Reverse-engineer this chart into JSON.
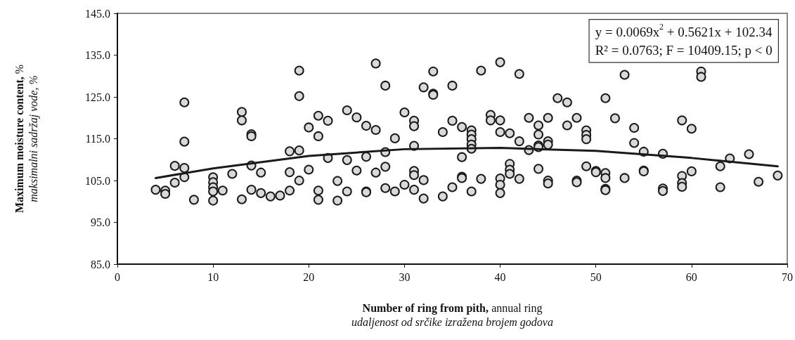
{
  "chart_data": {
    "type": "scatter",
    "xlabel": "Number of ring from pith, annual ring\nudaljenost od srčike izražena brojem godova",
    "ylabel": "Maximum moisture content, %\nmaksimalni sadržaj vode, %",
    "xlim": [
      0,
      70
    ],
    "xticks": [
      0,
      10,
      20,
      30,
      40,
      50,
      60,
      70
    ],
    "ylim": [
      85,
      145
    ],
    "yticks": [
      {
        "value": 85,
        "label": "85.0"
      },
      {
        "value": 95,
        "label": "95.0"
      },
      {
        "value": 105,
        "label": "105.0"
      },
      {
        "value": 115,
        "label": "115.0"
      },
      {
        "value": 125,
        "label": "125.0"
      },
      {
        "value": 135,
        "label": "135.0"
      },
      {
        "value": 145,
        "label": "145.0"
      }
    ],
    "grid": false,
    "marker": "circle",
    "annotations": [
      "y = 0.0069x$^{2}$ + 0.5621x + 102.34",
      "R² = 0.0763; F = 10409.15; p < 0"
    ],
    "series": [
      {
        "color": "#d9d9d9",
        "x": [
          4,
          5,
          5,
          6,
          6,
          7,
          7,
          7,
          7,
          8,
          10,
          10,
          10,
          10,
          10,
          11,
          12,
          13,
          13,
          13,
          14,
          14,
          14,
          14,
          15,
          15,
          16,
          17,
          18,
          18,
          18,
          19,
          19,
          19,
          19,
          20,
          20,
          21,
          21,
          21,
          21,
          22,
          22,
          23,
          23,
          24,
          24,
          24,
          25,
          25,
          26,
          26,
          26,
          26,
          27,
          27,
          27,
          28,
          28,
          28,
          28,
          29,
          29,
          30,
          30,
          31,
          31,
          31,
          31,
          31,
          31,
          32,
          32,
          32,
          33,
          33,
          33,
          34,
          34,
          35,
          35,
          35,
          36,
          36,
          36,
          36,
          37,
          37,
          37,
          37,
          37,
          37,
          38,
          38,
          39,
          39,
          40,
          40,
          40,
          40,
          40,
          40,
          41,
          41,
          41,
          41,
          42,
          42,
          42,
          43,
          43,
          44,
          44,
          44,
          44,
          44,
          45,
          45,
          45,
          45,
          45,
          46,
          47,
          47,
          48,
          48,
          48,
          49,
          49,
          49,
          49,
          50,
          50,
          51,
          51,
          51,
          51,
          51,
          52,
          53,
          53,
          54,
          54,
          55,
          55,
          55,
          57,
          57,
          57,
          59,
          59,
          59,
          59,
          60,
          60,
          61,
          61,
          63,
          63,
          64,
          66,
          67,
          69
        ],
        "values": [
          102.8,
          102.6,
          101.8,
          104.5,
          108.5,
          123.7,
          114.3,
          108.0,
          105.8,
          100.4,
          105.8,
          104.6,
          103.4,
          102.4,
          100.2,
          102.6,
          106.6,
          121.4,
          119.4,
          100.5,
          116.1,
          115.6,
          108.6,
          102.8,
          106.9,
          102.0,
          101.2,
          101.4,
          112.0,
          107.0,
          102.6,
          131.3,
          125.2,
          112.2,
          105.0,
          117.7,
          107.6,
          120.5,
          115.6,
          102.6,
          100.4,
          119.3,
          110.4,
          104.9,
          100.2,
          121.8,
          109.9,
          102.4,
          120.1,
          107.4,
          118.1,
          110.7,
          102.4,
          102.2,
          133.0,
          117.1,
          106.9,
          127.7,
          111.8,
          108.3,
          103.2,
          115.1,
          102.4,
          121.3,
          104.0,
          119.3,
          118.0,
          113.3,
          107.3,
          106.3,
          102.8,
          127.3,
          105.1,
          100.7,
          131.1,
          125.8,
          125.5,
          116.6,
          101.2,
          127.7,
          119.3,
          103.4,
          117.8,
          110.6,
          105.9,
          105.6,
          117.0,
          116.0,
          114.9,
          113.6,
          112.6,
          102.4,
          131.3,
          105.4,
          120.7,
          119.4,
          133.3,
          119.4,
          116.6,
          105.5,
          104.0,
          102.0,
          116.3,
          109.0,
          107.6,
          106.6,
          130.5,
          114.4,
          105.4,
          120.0,
          112.3,
          118.2,
          116.0,
          113.4,
          113.0,
          107.8,
          120.0,
          114.4,
          113.6,
          105.0,
          104.3,
          124.7,
          123.7,
          118.2,
          120.0,
          105.0,
          104.6,
          117.0,
          115.9,
          114.9,
          108.4,
          107.3,
          107.0,
          124.7,
          106.8,
          105.6,
          103.0,
          102.7,
          119.9,
          130.3,
          105.6,
          117.6,
          114.0,
          111.9,
          107.4,
          107.2,
          111.4,
          103.1,
          102.5,
          119.4,
          106.1,
          104.4,
          103.5,
          117.4,
          107.2,
          131.1,
          129.8,
          108.4,
          103.4,
          110.3,
          111.3,
          104.7,
          106.2
        ]
      },
      {
        "type": "line",
        "color": "#1a1a1a",
        "marker": "none",
        "line_style": "solid",
        "x": [
          4,
          10,
          20,
          30,
          40,
          50,
          60,
          69
        ],
        "values": [
          105.6,
          107.9,
          110.9,
          112.5,
          112.8,
          112.1,
          110.4,
          108.4
        ]
      }
    ]
  }
}
